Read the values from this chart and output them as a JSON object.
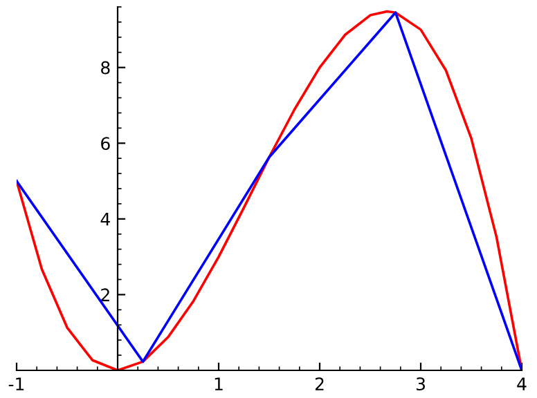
{
  "chart_data": {
    "type": "line",
    "series": [
      {
        "color": "#ff0000",
        "x": [
          -1,
          -0.75,
          -0.5,
          -0.25,
          0,
          0.25,
          0.5,
          0.75,
          1,
          1.25,
          1.5,
          1.75,
          2,
          2.25,
          2.5,
          2.667,
          2.75,
          3,
          3.25,
          3.5,
          3.75,
          4
        ],
        "values": [
          5,
          2.67,
          1.13,
          0.27,
          0,
          0.23,
          0.88,
          1.83,
          3,
          4.3,
          5.63,
          6.89,
          8,
          8.86,
          9.38,
          9.48,
          9.45,
          9,
          7.92,
          6.13,
          3.52,
          0
        ]
      },
      {
        "color": "#0000ff",
        "x": [
          -1,
          0.25,
          1.5,
          2.75,
          4
        ],
        "values": [
          5,
          0.23,
          5.63,
          9.45,
          0
        ]
      }
    ],
    "xlim": [
      -1,
      4
    ],
    "ylim": [
      0,
      9.6
    ],
    "xticks": [
      {
        "value": -1,
        "label": "-1"
      },
      1,
      2,
      3,
      4
    ],
    "yticks": [
      2,
      4,
      6,
      8
    ],
    "grid": false,
    "legend": false,
    "marker": "none",
    "line_style": "solid"
  }
}
